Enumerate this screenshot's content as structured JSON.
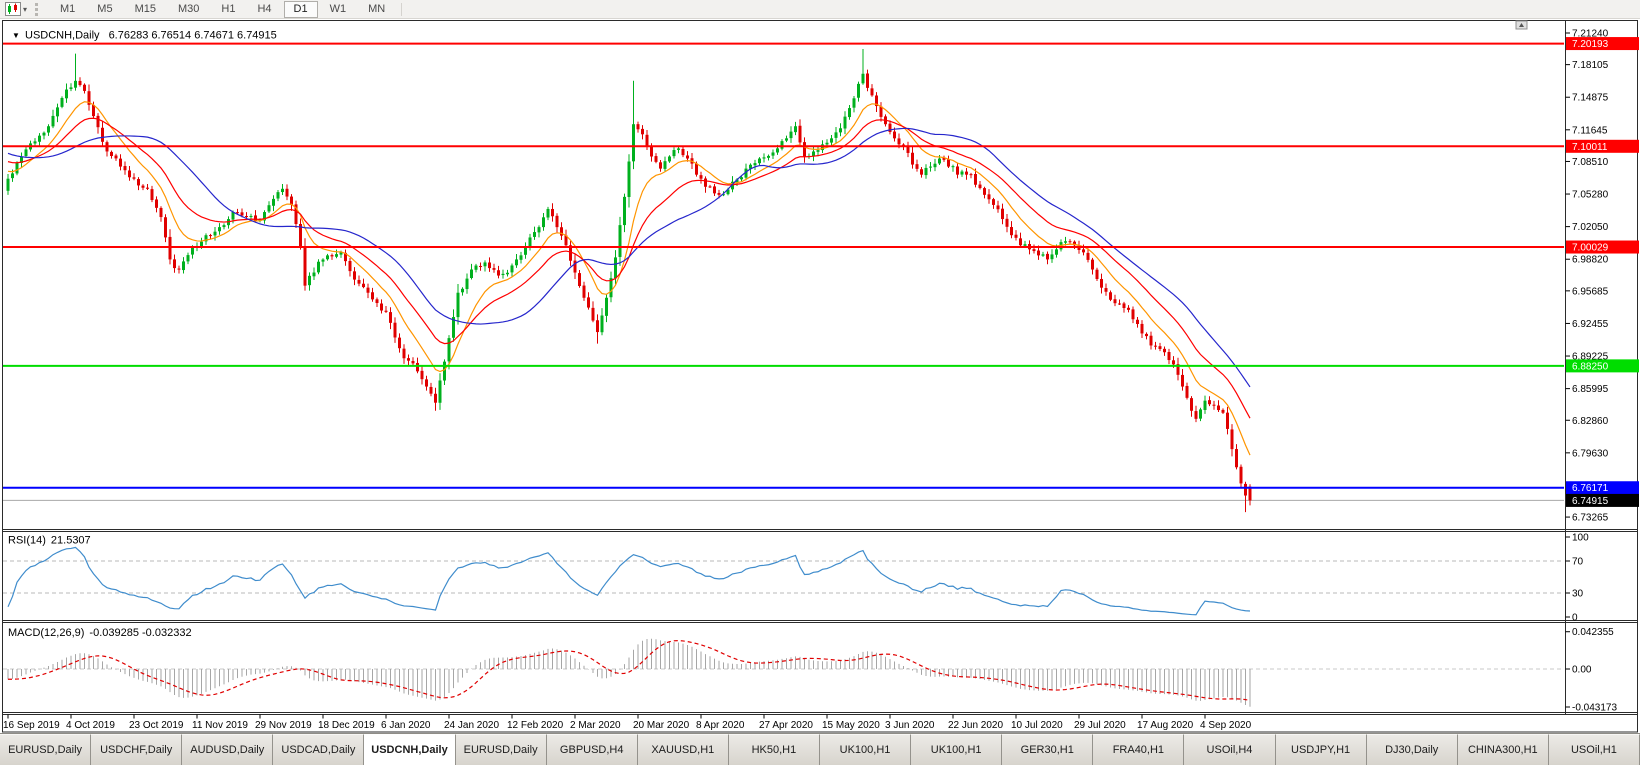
{
  "toolbar": {
    "timeframes": [
      "M1",
      "M5",
      "M15",
      "M30",
      "H1",
      "H4",
      "D1",
      "W1",
      "MN"
    ],
    "active_timeframe": "D1"
  },
  "chart": {
    "title_symbol": "USDCNH,Daily",
    "title_ohlc": "6.76283 6.76514 6.74671 6.74915",
    "price_axis_labels": [
      "7.21240",
      "7.18105",
      "7.14875",
      "7.11645",
      "7.08510",
      "7.05280",
      "7.02050",
      "6.98820",
      "6.95685",
      "6.92455",
      "6.89225",
      "6.85995",
      "6.82860",
      "6.79630",
      "6.73265"
    ],
    "time_axis_labels": [
      "16 Sep 2019",
      "4 Oct 2019",
      "23 Oct 2019",
      "11 Nov 2019",
      "29 Nov 2019",
      "18 Dec 2019",
      "6 Jan 2020",
      "24 Jan 2020",
      "12 Feb 2020",
      "2 Mar 2020",
      "20 Mar 2020",
      "8 Apr 2020",
      "27 Apr 2020",
      "15 May 2020",
      "3 Jun 2020",
      "22 Jun 2020",
      "10 Jul 2020",
      "29 Jul 2020",
      "17 Aug 2020",
      "4 Sep 2020"
    ],
    "levels": [
      {
        "price": 7.20193,
        "label": "7.20193",
        "color": "#ff0000"
      },
      {
        "price": 7.10011,
        "label": "7.10011",
        "color": "#ff0000"
      },
      {
        "price": 7.00029,
        "label": "7.00029",
        "color": "#ff0000"
      },
      {
        "price": 6.8825,
        "label": "6.88250",
        "color": "#00dd00"
      },
      {
        "price": 6.76171,
        "label": "6.76171",
        "color": "#0000ff"
      }
    ],
    "bid": {
      "price": 6.74915,
      "label": "6.74915",
      "line_color": "#a8a8a8",
      "box_color": "#000000"
    }
  },
  "rsi": {
    "title": "RSI(14)",
    "value": "21.5307",
    "axis_labels": [
      "100",
      "70",
      "30",
      "0"
    ],
    "guide_levels": [
      70,
      30
    ],
    "line_color": "#3f8ccc"
  },
  "macd": {
    "title": "MACD(12,26,9)",
    "values": "-0.039285 -0.032332",
    "axis_labels": [
      "0.042355",
      "0.00",
      "-0.043173"
    ],
    "hist_color": "#a6a6a6",
    "signal_color": "#e00000"
  },
  "tabs": {
    "active_index": 4,
    "items": [
      "EURUSD,Daily",
      "USDCHF,Daily",
      "AUDUSD,Daily",
      "USDCAD,Daily",
      "USDCNH,Daily",
      "EURUSD,Daily",
      "GBPUSD,H4",
      "XAUUSD,H1",
      "HK50,H1",
      "UK100,H1",
      "UK100,H1",
      "GER30,H1",
      "FRA40,H1",
      "USOil,H4",
      "USDJPY,H1",
      "DJ30,Daily",
      "CHINA300,H1",
      "USOil,H1"
    ]
  },
  "colors": {
    "bull": "#00b01e",
    "bear": "#e00000",
    "ma_fast": "#ff9500",
    "ma_mid": "#ff0000",
    "ma_slow": "#2626cc"
  },
  "chart_data": {
    "type": "candlestick",
    "symbol": "USDCNH",
    "period": "Daily",
    "last_bar_ohlc": {
      "open": 6.76283,
      "high": 6.76514,
      "low": 6.74671,
      "close": 6.74915
    },
    "price_axis_range": {
      "top": 7.2124,
      "bottom": 6.73265
    },
    "bar_count": 277,
    "bars_per_time_label": 14,
    "close_anchors": [
      [
        0,
        7.068
      ],
      [
        3,
        7.09
      ],
      [
        6,
        7.105
      ],
      [
        9,
        7.12
      ],
      [
        12,
        7.148
      ],
      [
        15,
        7.165
      ],
      [
        17,
        7.155
      ],
      [
        19,
        7.13
      ],
      [
        22,
        7.095
      ],
      [
        25,
        7.08
      ],
      [
        28,
        7.068
      ],
      [
        31,
        7.058
      ],
      [
        34,
        7.03
      ],
      [
        36,
        6.988
      ],
      [
        38,
        6.978
      ],
      [
        41,
        7.0
      ],
      [
        44,
        7.012
      ],
      [
        47,
        7.02
      ],
      [
        50,
        7.035
      ],
      [
        53,
        7.03
      ],
      [
        56,
        7.027
      ],
      [
        59,
        7.048
      ],
      [
        61,
        7.058
      ],
      [
        63,
        7.042
      ],
      [
        65,
        7.0
      ],
      [
        66,
        6.962
      ],
      [
        68,
        6.975
      ],
      [
        71,
        6.992
      ],
      [
        74,
        6.995
      ],
      [
        77,
        6.968
      ],
      [
        80,
        6.955
      ],
      [
        84,
        6.936
      ],
      [
        87,
        6.9
      ],
      [
        90,
        6.885
      ],
      [
        93,
        6.862
      ],
      [
        95,
        6.846
      ],
      [
        96,
        6.868
      ],
      [
        98,
        6.91
      ],
      [
        100,
        6.955
      ],
      [
        103,
        6.978
      ],
      [
        106,
        6.985
      ],
      [
        109,
        6.972
      ],
      [
        112,
        6.982
      ],
      [
        115,
        7.0
      ],
      [
        118,
        7.02
      ],
      [
        120,
        7.038
      ],
      [
        122,
        7.02
      ],
      [
        124,
        7.002
      ],
      [
        126,
        6.975
      ],
      [
        128,
        6.95
      ],
      [
        131,
        6.916
      ],
      [
        133,
        6.95
      ],
      [
        135,
        6.99
      ],
      [
        137,
        7.05
      ],
      [
        139,
        7.122
      ],
      [
        141,
        7.112
      ],
      [
        143,
        7.09
      ],
      [
        145,
        7.078
      ],
      [
        147,
        7.09
      ],
      [
        149,
        7.098
      ],
      [
        151,
        7.088
      ],
      [
        153,
        7.072
      ],
      [
        155,
        7.06
      ],
      [
        158,
        7.052
      ],
      [
        161,
        7.065
      ],
      [
        164,
        7.078
      ],
      [
        167,
        7.088
      ],
      [
        170,
        7.094
      ],
      [
        173,
        7.108
      ],
      [
        175,
        7.12
      ],
      [
        177,
        7.09
      ],
      [
        179,
        7.095
      ],
      [
        181,
        7.102
      ],
      [
        183,
        7.108
      ],
      [
        185,
        7.118
      ],
      [
        187,
        7.138
      ],
      [
        189,
        7.162
      ],
      [
        190,
        7.172
      ],
      [
        191,
        7.158
      ],
      [
        193,
        7.14
      ],
      [
        195,
        7.122
      ],
      [
        197,
        7.108
      ],
      [
        199,
        7.1
      ],
      [
        201,
        7.082
      ],
      [
        203,
        7.072
      ],
      [
        205,
        7.08
      ],
      [
        207,
        7.088
      ],
      [
        209,
        7.08
      ],
      [
        211,
        7.072
      ],
      [
        213,
        7.072
      ],
      [
        215,
        7.062
      ],
      [
        217,
        7.052
      ],
      [
        219,
        7.042
      ],
      [
        221,
        7.028
      ],
      [
        223,
        7.012
      ],
      [
        225,
        7.002
      ],
      [
        227,
        6.998
      ],
      [
        229,
        6.992
      ],
      [
        231,
        6.988
      ],
      [
        233,
        6.998
      ],
      [
        235,
        7.006
      ],
      [
        237,
        7.002
      ],
      [
        239,
        6.995
      ],
      [
        241,
        6.978
      ],
      [
        243,
        6.96
      ],
      [
        245,
        6.948
      ],
      [
        247,
        6.944
      ],
      [
        249,
        6.938
      ],
      [
        251,
        6.924
      ],
      [
        253,
        6.912
      ],
      [
        255,
        6.902
      ],
      [
        257,
        6.896
      ],
      [
        259,
        6.884
      ],
      [
        261,
        6.862
      ],
      [
        263,
        6.838
      ],
      [
        264,
        6.83
      ],
      [
        266,
        6.848
      ],
      [
        268,
        6.843
      ],
      [
        270,
        6.836
      ],
      [
        271,
        6.82
      ],
      [
        272,
        6.8
      ],
      [
        273,
        6.782
      ],
      [
        274,
        6.766
      ],
      [
        275,
        6.754
      ],
      [
        276,
        6.74915
      ]
    ],
    "wick_extremes": [
      {
        "bar": 15,
        "high": 7.192
      },
      {
        "bar": 95,
        "low": 6.838
      },
      {
        "bar": 131,
        "low": 6.9045
      },
      {
        "bar": 139,
        "high": 7.1651
      },
      {
        "bar": 190,
        "high": 7.1965
      },
      {
        "bar": 275,
        "low": 6.7375
      }
    ],
    "indicators": {
      "moving_averages": [
        {
          "type": "ema",
          "period": 10,
          "color_key": "ma_fast"
        },
        {
          "type": "ema",
          "period": 21,
          "color_key": "ma_mid"
        },
        {
          "type": "sma",
          "period": 30,
          "color_key": "ma_slow"
        }
      ],
      "rsi": {
        "period": 14,
        "last_value": 21.5307,
        "range": [
          0,
          100
        ],
        "guides": [
          70,
          30
        ]
      },
      "macd": {
        "fast": 12,
        "slow": 26,
        "signal": 9,
        "last_main": -0.039285,
        "last_signal": -0.032332,
        "axis_range": [
          -0.043173,
          0.042355
        ]
      }
    }
  }
}
